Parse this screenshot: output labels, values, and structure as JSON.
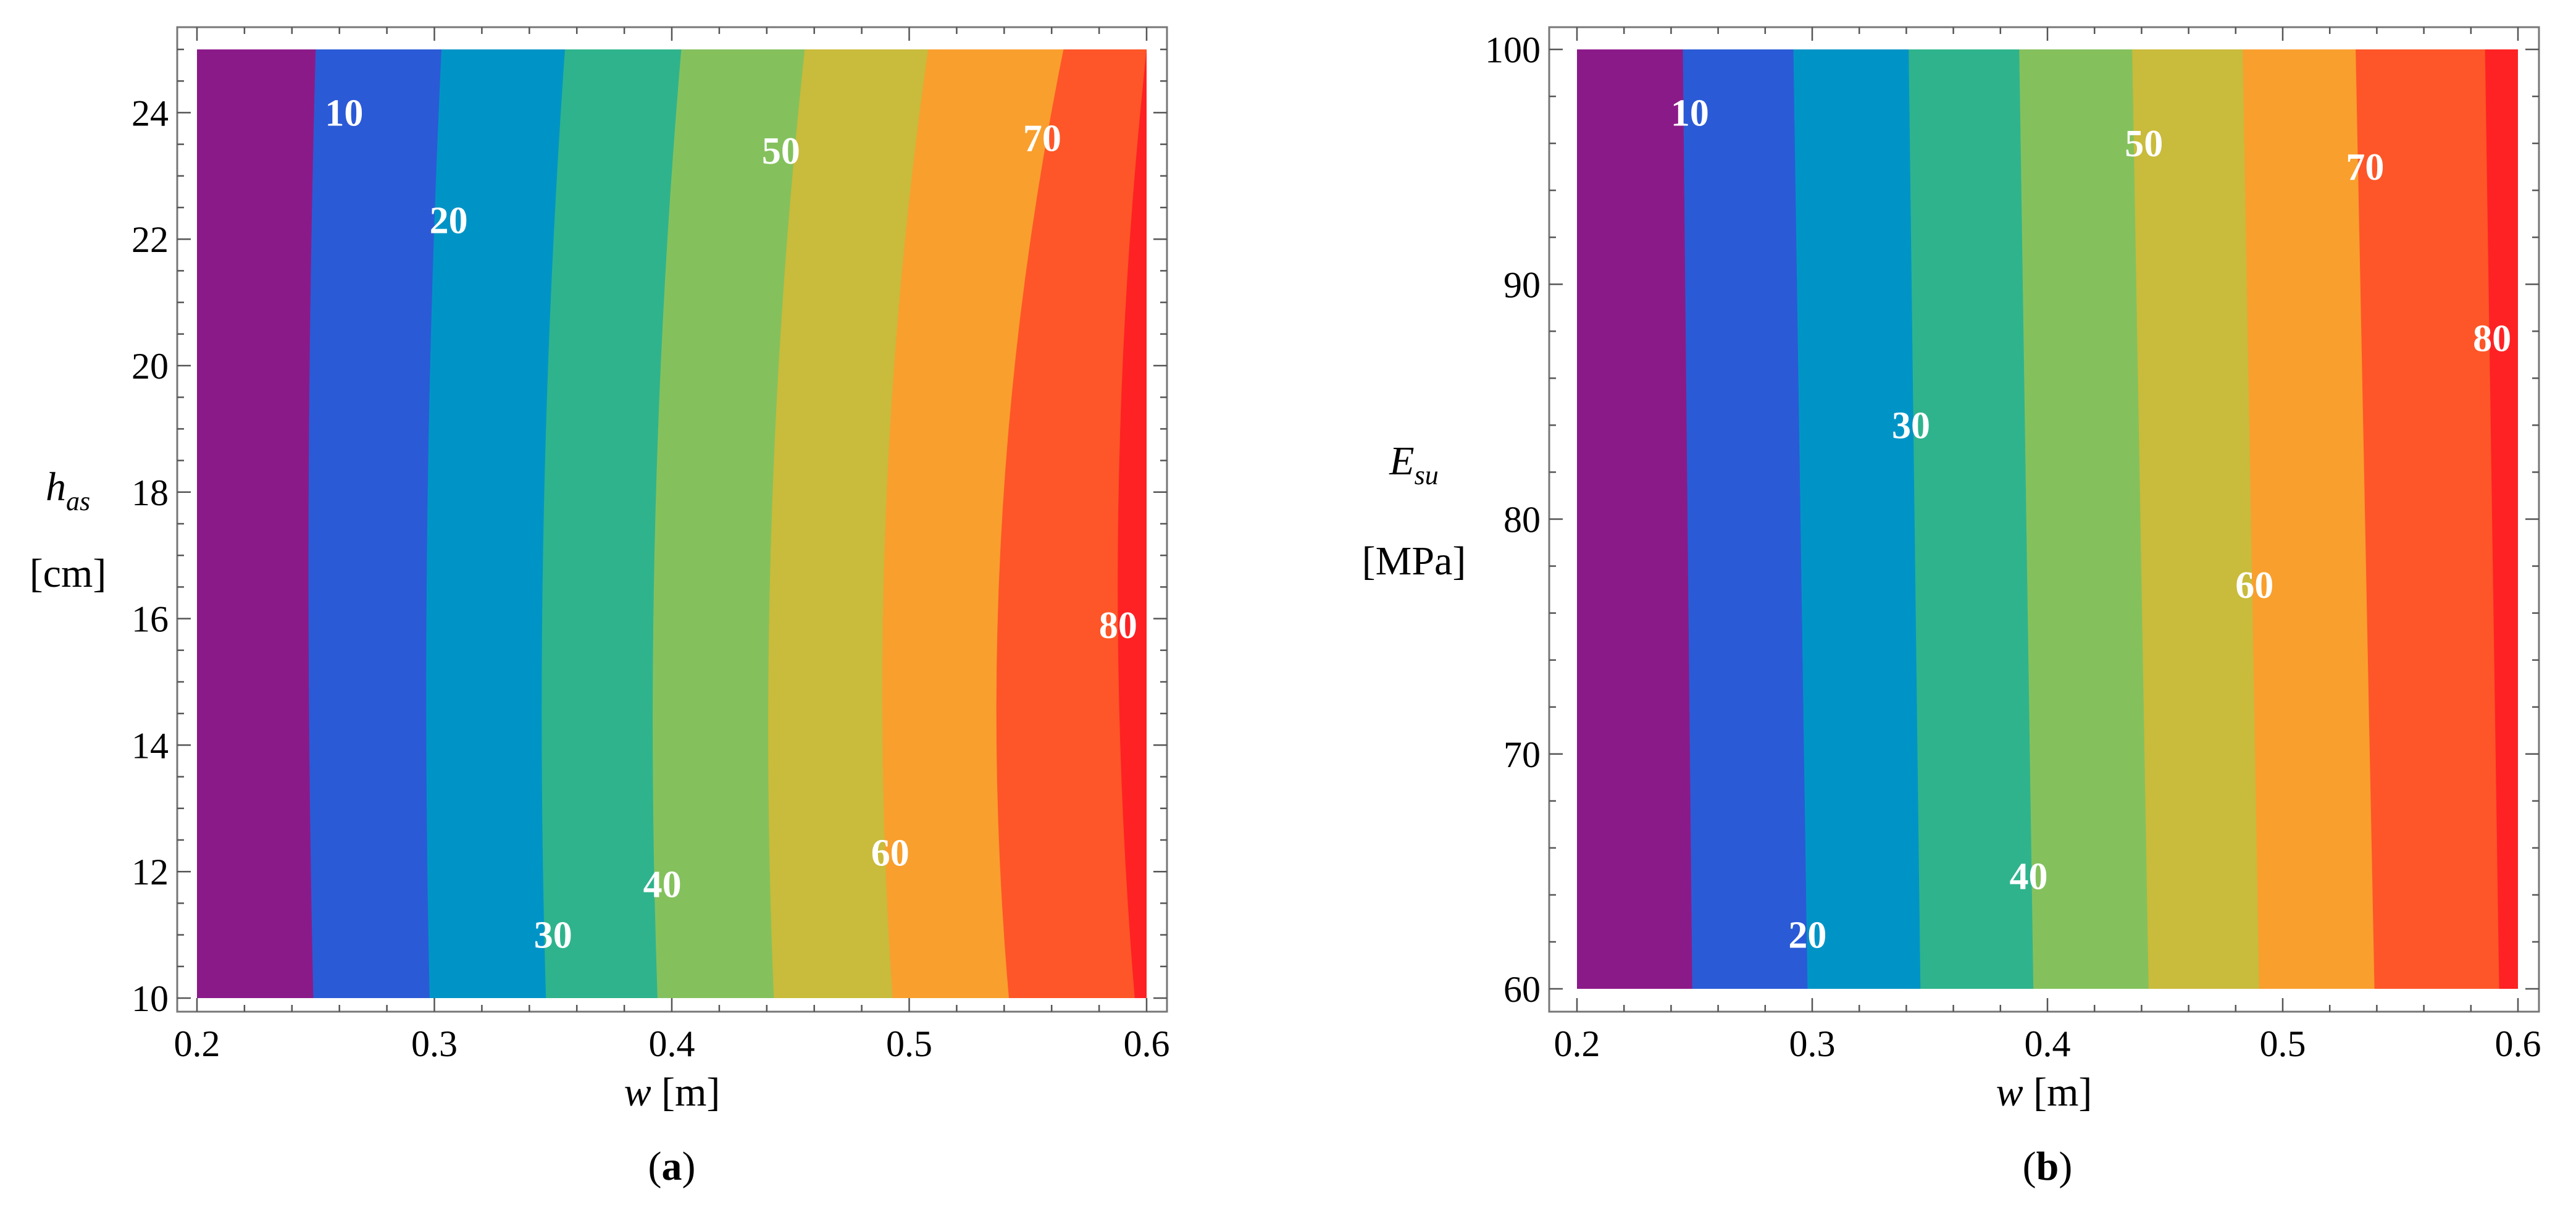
{
  "chart_data": [
    {
      "panel": "(a)",
      "panel_letter": "a",
      "type": "contour",
      "xlabel": "w [m]",
      "xlabel_var": "w",
      "xlabel_unit": "[m]",
      "ylabel_var": "h",
      "ylabel_sub": "as",
      "ylabel_unit": "[cm]",
      "xlim": [
        0.2,
        0.6
      ],
      "ylim": [
        10,
        25
      ],
      "xticks": [
        0.2,
        0.3,
        0.4,
        0.5,
        0.6
      ],
      "xtick_labels": [
        "0.2",
        "0.3",
        "0.4",
        "0.5",
        "0.6"
      ],
      "yticks": [
        10,
        12,
        14,
        16,
        18,
        20,
        22,
        24
      ],
      "ytick_labels": [
        "10",
        "12",
        "14",
        "16",
        "18",
        "20",
        "22",
        "24"
      ],
      "contour_levels": [
        10,
        20,
        30,
        40,
        50,
        60,
        70,
        80
      ],
      "contour_boundaries": [
        {
          "level": 10,
          "w_top": 0.25,
          "w_mid": 0.247,
          "w_bottom": 0.249
        },
        {
          "level": 20,
          "w_top": 0.303,
          "w_mid": 0.297,
          "w_bottom": 0.298
        },
        {
          "level": 30,
          "w_top": 0.355,
          "w_mid": 0.346,
          "w_bottom": 0.347
        },
        {
          "level": 40,
          "w_top": 0.404,
          "w_mid": 0.393,
          "w_bottom": 0.394
        },
        {
          "level": 50,
          "w_top": 0.456,
          "w_mid": 0.442,
          "w_bottom": 0.443
        },
        {
          "level": 60,
          "w_top": 0.508,
          "w_mid": 0.49,
          "w_bottom": 0.493
        },
        {
          "level": 70,
          "w_top": 0.565,
          "w_mid": 0.539,
          "w_bottom": 0.542
        },
        {
          "level": 80,
          "w_top": 0.6,
          "w_mid": 0.588,
          "w_bottom": 0.595
        }
      ],
      "labels": [
        {
          "text": "10",
          "x": 0.262,
          "y": 24.0
        },
        {
          "text": "20",
          "x": 0.306,
          "y": 22.3
        },
        {
          "text": "30",
          "x": 0.35,
          "y": 11.0
        },
        {
          "text": "40",
          "x": 0.396,
          "y": 11.8
        },
        {
          "text": "50",
          "x": 0.446,
          "y": 23.4
        },
        {
          "text": "60",
          "x": 0.492,
          "y": 12.3
        },
        {
          "text": "70",
          "x": 0.556,
          "y": 23.6
        },
        {
          "text": "80",
          "x": 0.588,
          "y": 15.9
        }
      ]
    },
    {
      "panel": "(b)",
      "panel_letter": "b",
      "type": "contour",
      "xlabel": "w [m]",
      "xlabel_var": "w",
      "xlabel_unit": "[m]",
      "ylabel_var": "E",
      "ylabel_sub": "su",
      "ylabel_unit": "[MPa]",
      "xlim": [
        0.2,
        0.6
      ],
      "ylim": [
        60,
        100
      ],
      "xticks": [
        0.2,
        0.3,
        0.4,
        0.5,
        0.6
      ],
      "xtick_labels": [
        "0.2",
        "0.3",
        "0.4",
        "0.5",
        "0.6"
      ],
      "yticks": [
        60,
        70,
        80,
        90,
        100
      ],
      "ytick_labels": [
        "60",
        "70",
        "80",
        "90",
        "100"
      ],
      "contour_levels": [
        10,
        20,
        30,
        40,
        50,
        60,
        70,
        80
      ],
      "contour_boundaries": [
        {
          "level": 10,
          "w_top": 0.245,
          "w_bottom": 0.249
        },
        {
          "level": 20,
          "w_top": 0.292,
          "w_bottom": 0.298
        },
        {
          "level": 30,
          "w_top": 0.341,
          "w_bottom": 0.346
        },
        {
          "level": 40,
          "w_top": 0.388,
          "w_bottom": 0.394
        },
        {
          "level": 50,
          "w_top": 0.436,
          "w_bottom": 0.443
        },
        {
          "level": 60,
          "w_top": 0.483,
          "w_bottom": 0.49
        },
        {
          "level": 70,
          "w_top": 0.531,
          "w_bottom": 0.539
        },
        {
          "level": 80,
          "w_top": 0.586,
          "w_bottom": 0.592
        }
      ],
      "labels": [
        {
          "text": "10",
          "x": 0.248,
          "y": 97.3
        },
        {
          "text": "20",
          "x": 0.298,
          "y": 62.3
        },
        {
          "text": "30",
          "x": 0.342,
          "y": 84.0
        },
        {
          "text": "40",
          "x": 0.392,
          "y": 64.8
        },
        {
          "text": "50",
          "x": 0.441,
          "y": 96.0
        },
        {
          "text": "60",
          "x": 0.488,
          "y": 77.2
        },
        {
          "text": "70",
          "x": 0.535,
          "y": 95.0
        },
        {
          "text": "80",
          "x": 0.589,
          "y": 87.7
        }
      ]
    }
  ],
  "band_colors": [
    "#8b1a89",
    "#2b5ad6",
    "#0094c6",
    "#2fb38d",
    "#84c15d",
    "#c9bb3b",
    "#f99f2d",
    "#fe5628",
    "#fe2224"
  ]
}
